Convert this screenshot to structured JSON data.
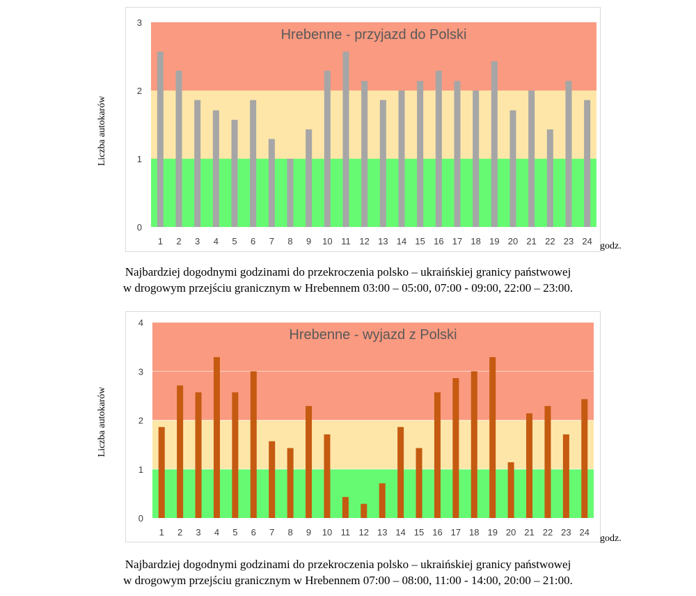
{
  "chart_data": [
    {
      "type": "bar",
      "title": "Hrebenne - przyjazd do Polski",
      "ylabel": "Liczba autokarów",
      "xlabel": "godz.",
      "categories": [
        "1",
        "2",
        "3",
        "4",
        "5",
        "6",
        "7",
        "8",
        "9",
        "10",
        "11",
        "12",
        "13",
        "14",
        "15",
        "16",
        "17",
        "18",
        "19",
        "20",
        "21",
        "22",
        "23",
        "24"
      ],
      "values": [
        2.57,
        2.29,
        1.86,
        1.71,
        1.57,
        1.86,
        1.29,
        1.0,
        1.43,
        2.29,
        2.57,
        2.14,
        1.86,
        2.0,
        2.14,
        2.29,
        2.14,
        2.0,
        2.43,
        1.71,
        2.0,
        1.43,
        2.14,
        1.86
      ],
      "ylim": [
        0,
        3
      ],
      "yticks": [
        0,
        1,
        2,
        3
      ],
      "bands": [
        {
          "from": 0,
          "to": 1,
          "color": "#66fa73"
        },
        {
          "from": 1,
          "to": 2,
          "color": "#fde6a8"
        },
        {
          "from": 2,
          "to": 3,
          "color": "#fa9a80"
        }
      ],
      "bar_color": "#a6a6a6",
      "grid": false,
      "caption_line1": "Najbardziej dogodnymi godzinami do przekroczenia polsko – ukraińskiej granicy państwowej",
      "caption_line2": "w drogowym przejściu granicznym w Hrebennem 03:00 – 05:00, 07:00 - 09:00, 22:00 – 23:00."
    },
    {
      "type": "bar",
      "title": "Hrebenne - wyjazd z Polski",
      "ylabel": "Liczba autokarów",
      "xlabel": "godz.",
      "categories": [
        "1",
        "2",
        "3",
        "4",
        "5",
        "6",
        "7",
        "8",
        "9",
        "10",
        "11",
        "12",
        "13",
        "14",
        "15",
        "16",
        "17",
        "18",
        "19",
        "20",
        "21",
        "22",
        "23",
        "24"
      ],
      "values": [
        1.86,
        2.71,
        2.57,
        3.29,
        2.57,
        3.0,
        1.57,
        1.43,
        2.29,
        1.71,
        0.43,
        0.29,
        0.71,
        1.86,
        1.43,
        2.57,
        2.86,
        3.0,
        3.29,
        1.14,
        2.14,
        2.29,
        1.71,
        2.43
      ],
      "ylim": [
        0,
        4
      ],
      "yticks": [
        0,
        1,
        2,
        3,
        4
      ],
      "bands": [
        {
          "from": 0,
          "to": 1,
          "color": "#66fa73"
        },
        {
          "from": 1,
          "to": 2,
          "color": "#fde6a8"
        },
        {
          "from": 2,
          "to": 4,
          "color": "#fa9a80"
        }
      ],
      "bar_color": "#c55a11",
      "grid": true,
      "caption_line1": "Najbardziej dogodnymi godzinami do przekroczenia polsko – ukraińskiej granicy państwowej",
      "caption_line2": "w drogowym przejściu granicznym w Hrebennem 07:00 – 08:00, 11:00 - 14:00, 20:00 – 21:00."
    }
  ]
}
